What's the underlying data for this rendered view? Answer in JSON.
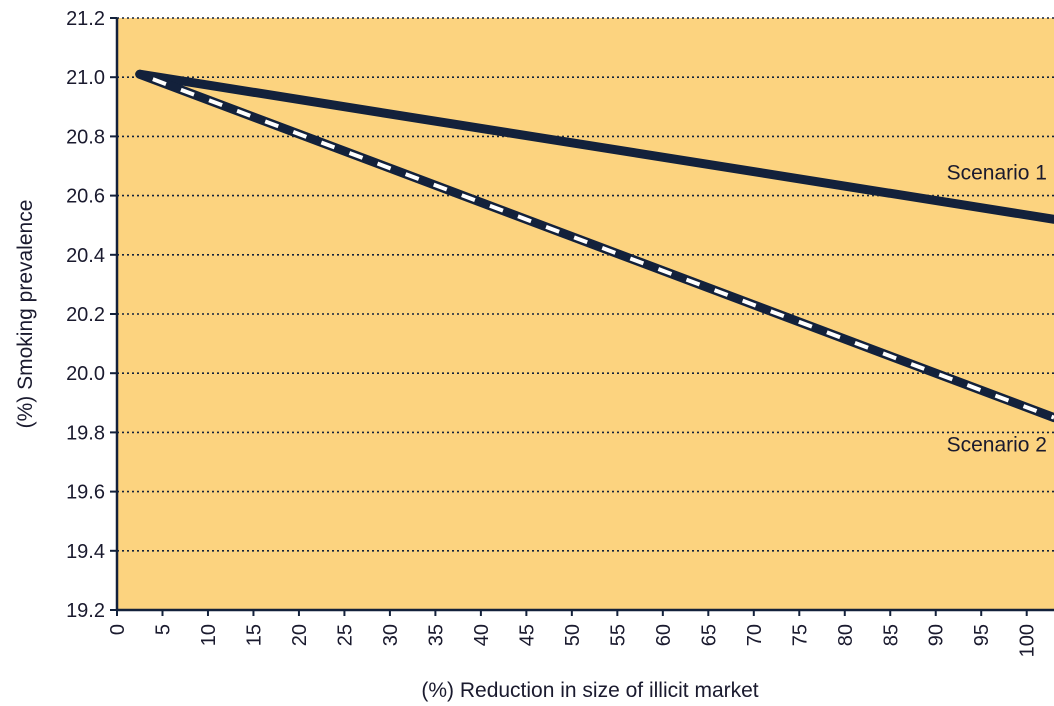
{
  "chart_data": {
    "type": "line",
    "xlabel": "(%) Reduction in size of illicit market",
    "ylabel": "(%) Smoking prevalence",
    "xlim": [
      0,
      103
    ],
    "ylim": [
      19.2,
      21.2
    ],
    "x_ticks": [
      0,
      5,
      10,
      15,
      20,
      25,
      30,
      35,
      40,
      45,
      50,
      55,
      60,
      65,
      70,
      75,
      80,
      85,
      90,
      95,
      100
    ],
    "x_tick_labels": [
      "0",
      "5",
      "10",
      "15",
      "20",
      "25",
      "30",
      "35",
      "40",
      "45",
      "50",
      "55",
      "60",
      "65",
      "70",
      "75",
      "80",
      "85",
      "90",
      "95",
      "100"
    ],
    "y_ticks": [
      19.2,
      19.4,
      19.6,
      19.8,
      20.0,
      20.2,
      20.4,
      20.6,
      20.8,
      21.0,
      21.2
    ],
    "y_tick_labels": [
      "19.2",
      "19.4",
      "19.6",
      "19.8",
      "20.0",
      "20.2",
      "20.4",
      "20.6",
      "20.8",
      "21.0",
      "21.2"
    ],
    "grid": "horizontal dotted",
    "series": [
      {
        "name": "Scenario 1",
        "style": "solid",
        "x": [
          2.5,
          103
        ],
        "y": [
          21.01,
          20.52
        ]
      },
      {
        "name": "Scenario 2",
        "style": "dashed",
        "x": [
          2.5,
          103
        ],
        "y": [
          21.01,
          19.85
        ]
      }
    ],
    "colors": {
      "plot_background": "#FCD37F",
      "line": "#13213B",
      "dash_gap": "#FFFFFF",
      "grid": "#13213B",
      "text": "#1A1A2E"
    }
  }
}
